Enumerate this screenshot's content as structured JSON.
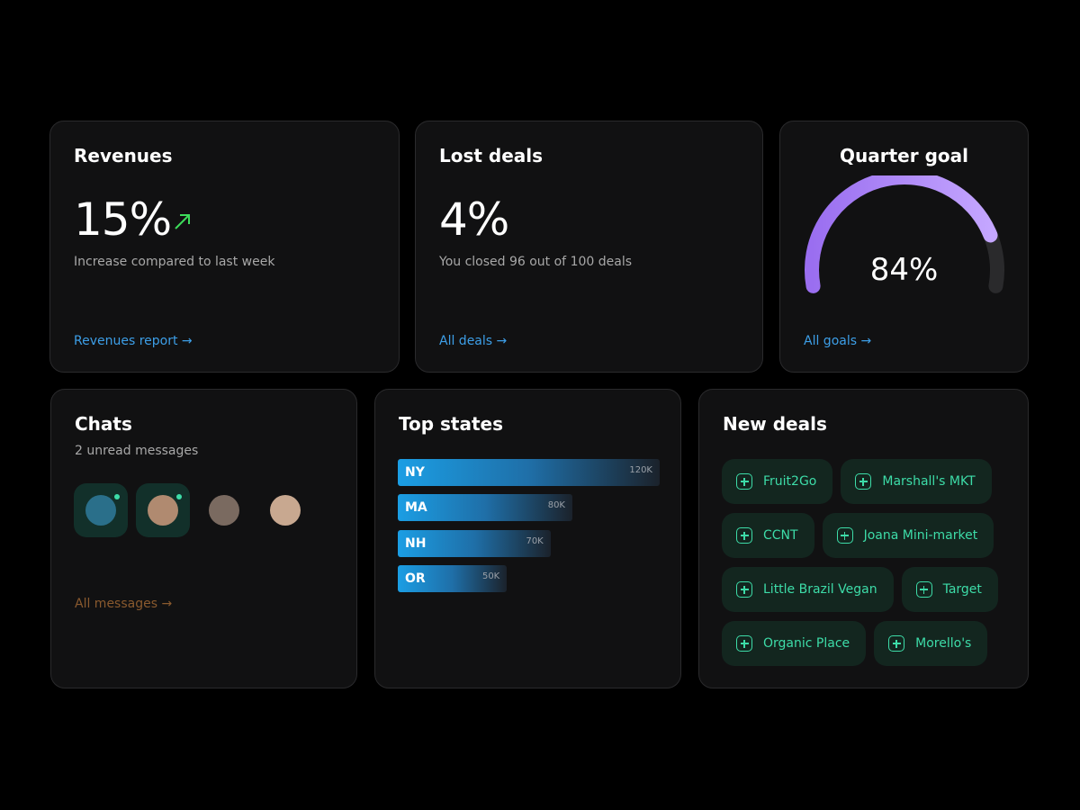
{
  "revenues": {
    "title": "Revenues",
    "value": "15%",
    "caption": "Increase compared to last week",
    "link": "Revenues report →"
  },
  "lost_deals": {
    "title": "Lost deals",
    "value": "4%",
    "caption": "You closed 96 out of 100 deals",
    "link": "All deals →"
  },
  "quarter_goal": {
    "title": "Quarter goal",
    "value": 84,
    "value_label": "84%",
    "range": [
      0,
      100
    ],
    "link": "All goals →"
  },
  "chats": {
    "title": "Chats",
    "subtitle": "2 unread messages",
    "link": "All messages →"
  },
  "top_states": {
    "title": "Top states",
    "categories": [
      "NY",
      "MA",
      "NH",
      "OR"
    ],
    "values": [
      120000,
      80000,
      70000,
      50000
    ],
    "value_labels": [
      "120K",
      "80K",
      "70K",
      "50K"
    ]
  },
  "new_deals": {
    "title": "New deals",
    "items": [
      "Fruit2Go",
      "Marshall's MKT",
      "CCNT",
      "Joana Mini-market",
      "Little Brazil Vegan",
      "Target",
      "Organic Place",
      "Morello's"
    ]
  }
}
